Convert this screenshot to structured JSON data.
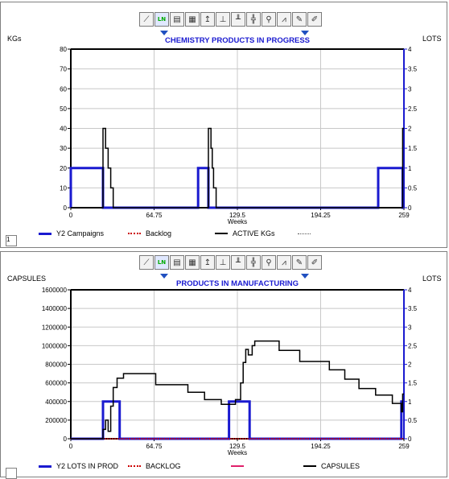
{
  "toolbar_icons": [
    "line-chart-icon",
    "ln-scale-icon",
    "table-icon",
    "grid-icon",
    "pin-icon",
    "axis-icon",
    "bar-axis-icon",
    "crosshair-icon",
    "zoom-icon",
    "chart-style-icon",
    "pencil-icon",
    "clear-icon"
  ],
  "chart_data": [
    {
      "type": "line",
      "title": "CHEMISTRY PRODUCTS IN PROGRESS",
      "ylabel_left": "KGs",
      "ylabel_right": "LOTS",
      "xlabel": "Weeks",
      "xlim": [
        0,
        259
      ],
      "ylim_left": [
        0,
        80
      ],
      "ylim_right": [
        0,
        4
      ],
      "x_ticks": [
        "0",
        "64.75",
        "129.5",
        "194.25",
        "259"
      ],
      "y_ticks_left": [
        "0",
        "10",
        "20",
        "30",
        "40",
        "50",
        "60",
        "70",
        "80"
      ],
      "y_ticks_right": [
        "0",
        "0.5",
        "1",
        "1.5",
        "2",
        "2.5",
        "3",
        "3.5",
        "4"
      ],
      "grid": true,
      "series": [
        {
          "name": "Y2 Campaigns",
          "color": "#1a1ad0",
          "axis": "right",
          "points": [
            [
              0,
              0
            ],
            [
              0,
              1
            ],
            [
              25,
              1
            ],
            [
              25,
              0
            ],
            [
              99,
              0
            ],
            [
              99,
              1
            ],
            [
              107,
              1
            ],
            [
              107,
              0
            ],
            [
              239,
              0
            ],
            [
              239,
              1
            ],
            [
              258,
              1
            ],
            [
              258,
              0
            ],
            [
              259,
              0
            ]
          ]
        },
        {
          "name": "Backlog",
          "color": "#cc0000",
          "axis": "left",
          "points": []
        },
        {
          "name": "ACTIVE KGs",
          "color": "#000000",
          "axis": "left",
          "points": [
            [
              0,
              0
            ],
            [
              25,
              0
            ],
            [
              25,
              40
            ],
            [
              27,
              40
            ],
            [
              27,
              30
            ],
            [
              29,
              30
            ],
            [
              29,
              20
            ],
            [
              31,
              20
            ],
            [
              31,
              10
            ],
            [
              33,
              10
            ],
            [
              33,
              0
            ],
            [
              107,
              0
            ],
            [
              107,
              40
            ],
            [
              109,
              40
            ],
            [
              109,
              30
            ],
            [
              110,
              30
            ],
            [
              110,
              20
            ],
            [
              111,
              20
            ],
            [
              111,
              10
            ],
            [
              113,
              10
            ],
            [
              113,
              0
            ],
            [
              258,
              0
            ],
            [
              258,
              40
            ],
            [
              259,
              40
            ]
          ]
        }
      ]
    },
    {
      "type": "line",
      "title": "PRODUCTS IN MANUFACTURING",
      "ylabel_left": "CAPSULES",
      "ylabel_right": "LOTS",
      "xlabel": "Weeks",
      "xlim": [
        0,
        259
      ],
      "ylim_left": [
        0,
        1600000
      ],
      "ylim_right": [
        0,
        4
      ],
      "x_ticks": [
        "0",
        "64.75",
        "129.5",
        "194.25",
        "259"
      ],
      "y_ticks_left": [
        "0",
        "200000",
        "400000",
        "600000",
        "800000",
        "1000000",
        "1200000",
        "1400000",
        "1600000"
      ],
      "y_ticks_right": [
        "0",
        "0.5",
        "1",
        "1.5",
        "2",
        "2.5",
        "3",
        "3.5",
        "4"
      ],
      "grid": true,
      "series": [
        {
          "name": "Y2 LOTS IN PROD",
          "color": "#1a1ad0",
          "axis": "right",
          "points": [
            [
              0,
              0
            ],
            [
              25,
              0
            ],
            [
              25,
              1
            ],
            [
              38,
              1
            ],
            [
              38,
              0
            ],
            [
              123,
              0
            ],
            [
              123,
              1
            ],
            [
              139,
              1
            ],
            [
              139,
              0
            ],
            [
              257,
              0
            ],
            [
              257,
              1
            ],
            [
              259,
              1
            ]
          ]
        },
        {
          "name": "BACKLOG",
          "color": "#cc0000",
          "axis": "left",
          "points": [
            [
              0,
              0
            ],
            [
              259,
              0
            ]
          ]
        },
        {
          "name": "",
          "color": "#e0206a",
          "axis": "left",
          "points": []
        },
        {
          "name": "CAPSULES",
          "color": "#000000",
          "axis": "left",
          "points": [
            [
              0,
              0
            ],
            [
              25,
              0
            ],
            [
              25,
              100000
            ],
            [
              27,
              100000
            ],
            [
              27,
              200000
            ],
            [
              29,
              200000
            ],
            [
              29,
              80000
            ],
            [
              31,
              80000
            ],
            [
              31,
              350000
            ],
            [
              33,
              350000
            ],
            [
              33,
              550000
            ],
            [
              36,
              550000
            ],
            [
              36,
              650000
            ],
            [
              41,
              650000
            ],
            [
              41,
              700000
            ],
            [
              66,
              700000
            ],
            [
              66,
              580000
            ],
            [
              91,
              580000
            ],
            [
              91,
              500000
            ],
            [
              104,
              500000
            ],
            [
              104,
              420000
            ],
            [
              117,
              420000
            ],
            [
              117,
              370000
            ],
            [
              128,
              370000
            ],
            [
              128,
              420000
            ],
            [
              132,
              420000
            ],
            [
              132,
              600000
            ],
            [
              134,
              600000
            ],
            [
              134,
              820000
            ],
            [
              136,
              820000
            ],
            [
              136,
              960000
            ],
            [
              138,
              960000
            ],
            [
              138,
              900000
            ],
            [
              141,
              900000
            ],
            [
              141,
              1000000
            ],
            [
              143,
              1000000
            ],
            [
              143,
              1050000
            ],
            [
              162,
              1050000
            ],
            [
              162,
              950000
            ],
            [
              178,
              950000
            ],
            [
              178,
              830000
            ],
            [
              201,
              830000
            ],
            [
              201,
              740000
            ],
            [
              213,
              740000
            ],
            [
              213,
              640000
            ],
            [
              224,
              640000
            ],
            [
              224,
              540000
            ],
            [
              237,
              540000
            ],
            [
              237,
              470000
            ],
            [
              250,
              470000
            ],
            [
              250,
              380000
            ],
            [
              257,
              380000
            ],
            [
              257,
              290000
            ],
            [
              258,
              290000
            ],
            [
              258,
              480000
            ],
            [
              259,
              480000
            ]
          ]
        }
      ]
    }
  ]
}
